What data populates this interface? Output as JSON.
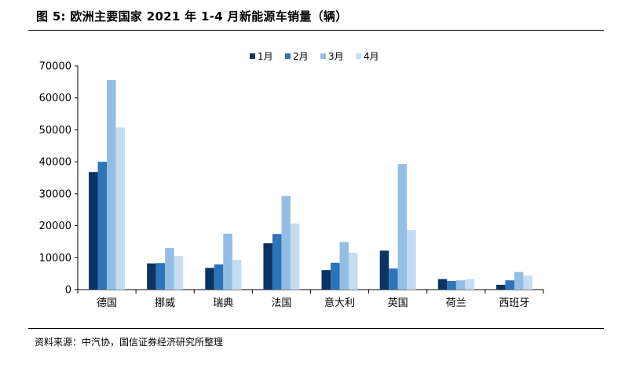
{
  "header": {
    "title": "图 5: 欧洲主要国家 2021 年 1-4 月新能源车销量（辆）"
  },
  "footer": {
    "source": "资料来源：中汽协，国信证券经济研究所整理"
  },
  "colors": {
    "series": [
      "#0d3363",
      "#2e74b8",
      "#93bde4",
      "#c5dcf1"
    ],
    "axis": "#000000"
  },
  "chart_data": {
    "type": "bar",
    "title": "",
    "xlabel": "",
    "ylabel": "",
    "categories": [
      "德国",
      "挪威",
      "瑞典",
      "法国",
      "意大利",
      "英国",
      "荷兰",
      "西班牙"
    ],
    "series": [
      {
        "name": "1月",
        "values": [
          36800,
          8200,
          6800,
          14500,
          6100,
          12200,
          3300,
          1500
        ]
      },
      {
        "name": "2月",
        "values": [
          40000,
          8300,
          7900,
          17400,
          8400,
          6600,
          2700,
          2900
        ]
      },
      {
        "name": "3月",
        "values": [
          65600,
          13000,
          17500,
          29300,
          14900,
          39300,
          2900,
          5500
        ]
      },
      {
        "name": "4月",
        "values": [
          50700,
          10500,
          9300,
          20700,
          11500,
          18700,
          3300,
          4400
        ]
      }
    ],
    "ylim": [
      0,
      70000
    ],
    "yticks": [
      0,
      10000,
      20000,
      30000,
      40000,
      50000,
      60000,
      70000
    ],
    "grid": false,
    "legend_position": "top-center"
  }
}
